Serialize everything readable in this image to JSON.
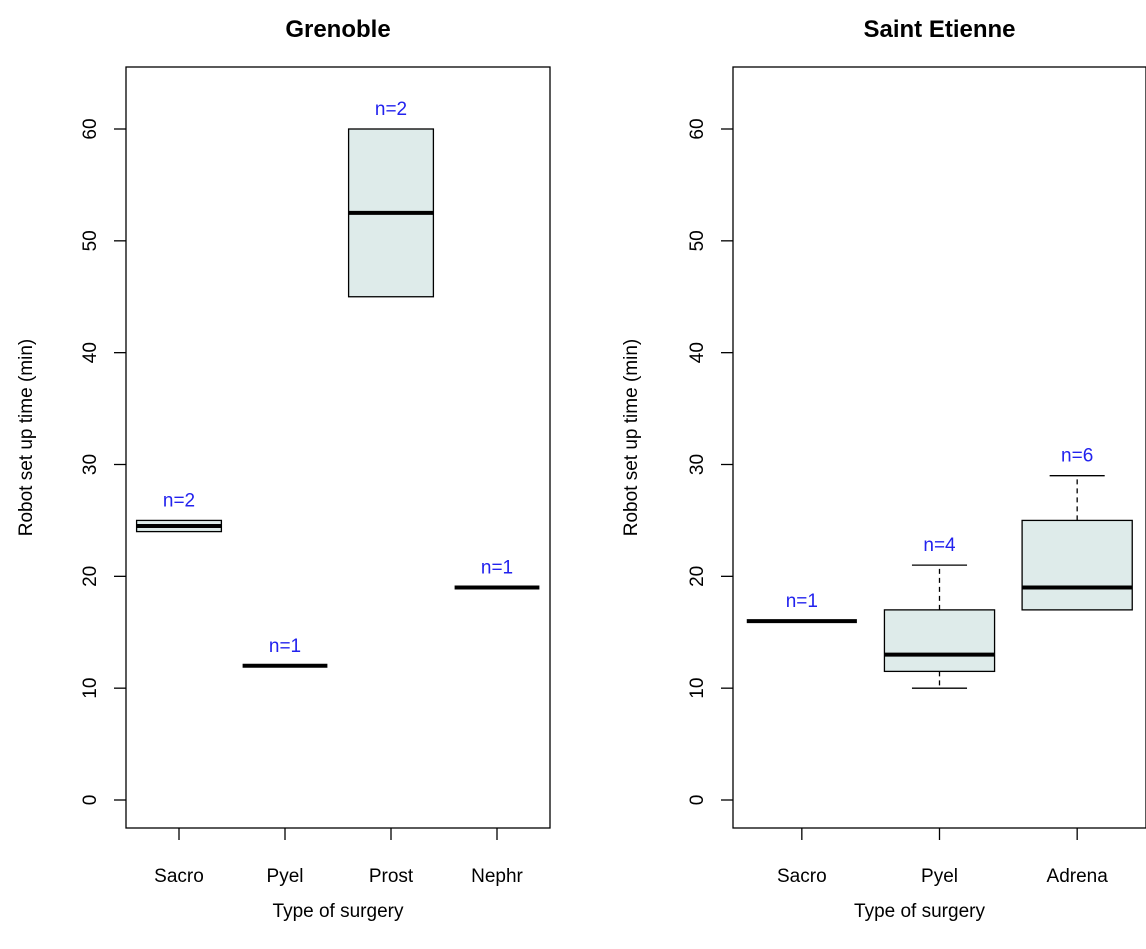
{
  "chart_data": [
    {
      "type": "box",
      "title": "Grenoble",
      "xlabel": "Type of surgery",
      "ylabel": "Robot set up time (min)",
      "ylim": [
        0,
        60
      ],
      "yticks": [
        0,
        10,
        20,
        30,
        40,
        50,
        60
      ],
      "grid": false,
      "box_fill": "#deebea",
      "n_label_color": "#2222ee",
      "categories": [
        "Sacro",
        "Pyel",
        "Prost",
        "Nephr"
      ],
      "boxes": [
        {
          "category": "Sacro",
          "min": 24,
          "q1": 24,
          "median": 24.5,
          "q3": 25,
          "max": 25,
          "n_label": "n=2"
        },
        {
          "category": "Pyel",
          "min": 12,
          "q1": 12,
          "median": 12,
          "q3": 12,
          "max": 12,
          "n_label": "n=1"
        },
        {
          "category": "Prost",
          "min": 45,
          "q1": 45,
          "median": 52.5,
          "q3": 60,
          "max": 60,
          "n_label": "n=2"
        },
        {
          "category": "Nephr",
          "min": 19,
          "q1": 19,
          "median": 19,
          "q3": 19,
          "max": 19,
          "n_label": "n=1"
        }
      ]
    },
    {
      "type": "box",
      "title": "Saint Etienne",
      "xlabel": "Type of surgery",
      "ylabel": "Robot set up time (min)",
      "ylim": [
        0,
        60
      ],
      "yticks": [
        0,
        10,
        20,
        30,
        40,
        50,
        60
      ],
      "grid": false,
      "box_fill": "#deebea",
      "n_label_color": "#2222ee",
      "categories": [
        "Sacro",
        "Pyel",
        "Adrena"
      ],
      "boxes": [
        {
          "category": "Sacro",
          "min": 16,
          "q1": 16,
          "median": 16,
          "q3": 16,
          "max": 16,
          "n_label": "n=1"
        },
        {
          "category": "Pyel",
          "min": 10,
          "q1": 11.5,
          "median": 13,
          "q3": 17,
          "max": 21,
          "n_label": "n=4"
        },
        {
          "category": "Adrena",
          "min": 17,
          "q1": 17,
          "median": 19,
          "q3": 25,
          "max": 29,
          "n_label": "n=6"
        }
      ]
    }
  ]
}
